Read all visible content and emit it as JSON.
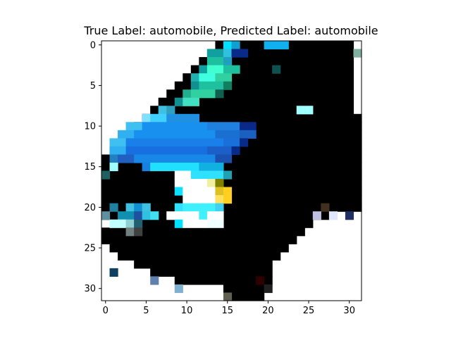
{
  "figure": {
    "title": "True Label: automobile, Predicted Label: automobile"
  },
  "chart_data": {
    "type": "heatmap",
    "title": "True Label: automobile, Predicted Label: automobile",
    "x_ticks": [
      "0",
      "5",
      "10",
      "15",
      "20",
      "25",
      "30"
    ],
    "y_ticks": [
      "0",
      "5",
      "10",
      "15",
      "20",
      "25",
      "30"
    ],
    "x_tick_values": [
      0,
      5,
      10,
      15,
      20,
      25,
      30
    ],
    "y_tick_values": [
      0,
      5,
      10,
      15,
      20,
      25,
      30
    ],
    "xlim": [
      -0.5,
      31.5
    ],
    "ylim": [
      31.5,
      -0.5
    ],
    "image_shape": [
      32,
      32
    ],
    "image_content": "low-resolution 32x32 RGB image of a dark automobile with bright blue body highlights and a yellow headlight",
    "colors": {
      "sky_white": "#ffffff",
      "car_black": "#000000",
      "windshield_cyan": "#00e0ff",
      "glass_teal": "#1fc0a0",
      "body_blue": "#1890f0",
      "deep_blue": "#0a2a8a",
      "headlight_yellow": "#ffd020"
    }
  }
}
